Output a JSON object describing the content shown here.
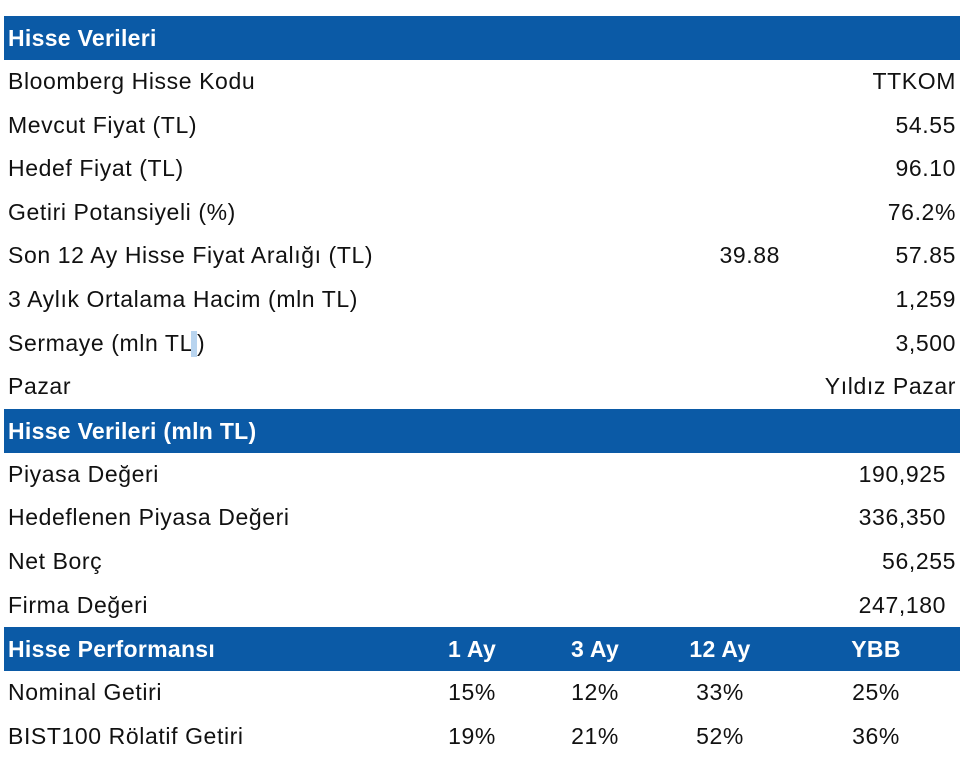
{
  "section1": {
    "title": "Hisse Verileri",
    "rows": [
      {
        "label": "Bloomberg Hisse Kodu",
        "value": "TTKOM"
      },
      {
        "label": "Mevcut Fiyat (TL)",
        "value": "54.55"
      },
      {
        "label": "Hedef Fiyat (TL)",
        "value": "96.10"
      },
      {
        "label": "Getiri Potansiyeli (%)",
        "value": "76.2%"
      },
      {
        "label": "Son 12 Ay Hisse Fiyat Aralığı (TL)",
        "low": "39.88",
        "value": "57.85"
      },
      {
        "label": "3 Aylık Ortalama Hacim (mln TL)",
        "value": "1,259"
      },
      {
        "label": "Sermaye (mln TL",
        "label_end": ")",
        "value": "3,500"
      },
      {
        "label": "Pazar",
        "value": "Yıldız Pazar"
      }
    ]
  },
  "section2": {
    "title": "Hisse Verileri (mln TL)",
    "rows": [
      {
        "label": "Piyasa Değeri",
        "value": "190,925"
      },
      {
        "label": "Hedeflenen Piyasa Değeri",
        "value": "336,350"
      },
      {
        "label": "Net Borç",
        "value": "56,255"
      },
      {
        "label": "Firma Değeri",
        "value": "247,180"
      }
    ]
  },
  "section3": {
    "title": "Hisse Performansı",
    "columns": [
      "1 Ay",
      "3 Ay",
      "12 Ay",
      "YBB"
    ],
    "rows": [
      {
        "label": "Nominal Getiri",
        "values": [
          "15%",
          "12%",
          "33%",
          "25%"
        ]
      },
      {
        "label": "BIST100 Rölatif Getiri",
        "values": [
          "19%",
          "21%",
          "52%",
          "36%"
        ]
      }
    ]
  },
  "colors": {
    "header_bg": "#0b5aa6",
    "header_text": "#ffffff",
    "body_text": "#111111"
  }
}
